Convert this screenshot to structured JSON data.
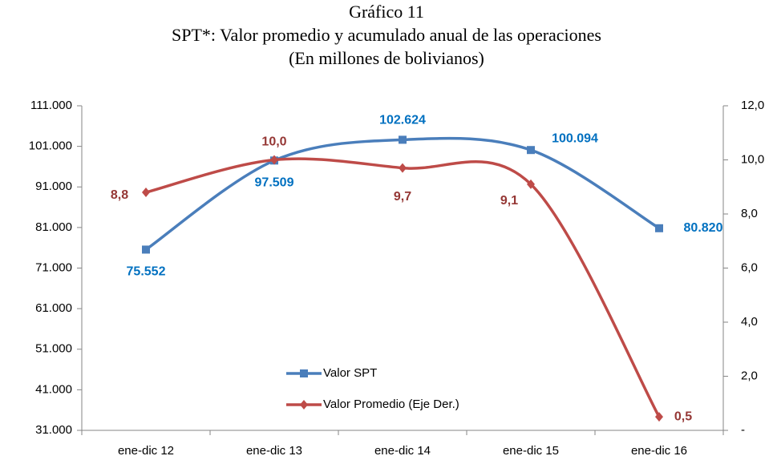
{
  "chart_data": {
    "type": "line",
    "title": "Gráfico 11",
    "subtitle": "SPT*: Valor promedio y acumulado anual de las operaciones",
    "subtitle2": "(En millones de bolivianos)",
    "categories": [
      "ene-dic 12",
      "ene-dic 13",
      "ene-dic 14",
      "ene-dic 15",
      "ene-dic 16"
    ],
    "series": [
      {
        "name": "Valor SPT",
        "color": "#4a7ebb",
        "label_color": "#0070c0",
        "marker": "square",
        "values": [
          75552,
          97509,
          102624,
          100094,
          80820
        ],
        "value_labels": [
          "75.552",
          "97.509",
          "102.624",
          "100.094",
          "80.820"
        ]
      },
      {
        "name": "Valor Promedio (Eje Der.)",
        "color": "#be4b48",
        "label_color": "#953735",
        "marker": "diamond",
        "axis": "y2",
        "values": [
          8.8,
          10.0,
          9.7,
          9.1,
          0.5
        ],
        "value_labels": [
          "8,8",
          "10,0",
          "9,7",
          "9,1",
          "0,5"
        ]
      }
    ],
    "ylim": [
      31000,
      111000
    ],
    "yticks": [
      {
        "value": 31000,
        "label": "31.000"
      },
      {
        "value": 41000,
        "label": "41.000"
      },
      {
        "value": 51000,
        "label": "51.000"
      },
      {
        "value": 61000,
        "label": "61.000"
      },
      {
        "value": 71000,
        "label": "71.000"
      },
      {
        "value": 81000,
        "label": "81.000"
      },
      {
        "value": 91000,
        "label": "91.000"
      },
      {
        "value": 101000,
        "label": "101.000"
      },
      {
        "value": 111000,
        "label": "111.000"
      }
    ],
    "y2lim": [
      0,
      12
    ],
    "y2ticks": [
      {
        "value": 0,
        "label": "-"
      },
      {
        "value": 2,
        "label": "2,0"
      },
      {
        "value": 4,
        "label": "4,0"
      },
      {
        "value": 6,
        "label": "6,0"
      },
      {
        "value": 8,
        "label": "8,0"
      },
      {
        "value": 10,
        "label": "10,0"
      },
      {
        "value": 12,
        "label": "12,0"
      }
    ],
    "grid": false
  }
}
